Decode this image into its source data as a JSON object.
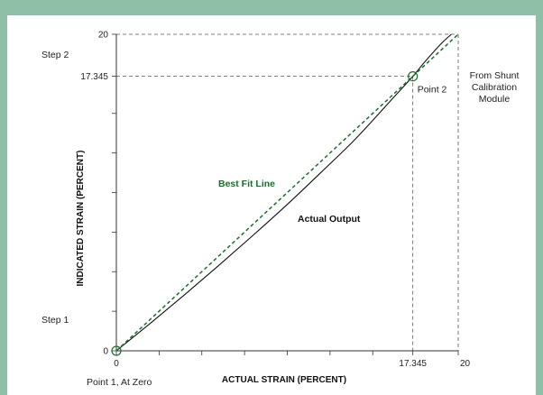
{
  "colors": {
    "background": "#8fbfa6",
    "panel": "#ffffff",
    "axis": "#333333",
    "actual": "#111111",
    "best_fit": "#1e6b2e",
    "guide": "#555555"
  },
  "chart_data": {
    "type": "line",
    "xlabel": "ACTUAL STRAIN (PERCENT)",
    "ylabel": "INDICATED STRAIN (PERCENT)",
    "xlim": [
      0,
      20
    ],
    "ylim": [
      0,
      20
    ],
    "x_ticks": [
      0,
      17.345,
      20
    ],
    "x_tick_labels": [
      "0",
      "17.345",
      "20"
    ],
    "y_ticks": [
      0,
      17.345,
      20
    ],
    "y_tick_labels": [
      "0",
      "17.345",
      "20"
    ],
    "minor_ticks": [
      2.5,
      5,
      7.5,
      10,
      12.5,
      15
    ],
    "series": [
      {
        "name": "Actual Output",
        "style": "solid",
        "x": [
          0,
          2,
          4,
          6,
          8,
          10,
          12,
          14,
          16,
          17.345,
          18,
          19,
          19.6
        ],
        "y": [
          0,
          1.75,
          3.55,
          5.4,
          7.3,
          9.25,
          11.3,
          13.4,
          15.75,
          17.345,
          18.2,
          19.4,
          20
        ]
      },
      {
        "name": "Best Fit Line",
        "style": "dashed",
        "x": [
          0,
          20
        ],
        "y": [
          0,
          20
        ]
      }
    ],
    "points": [
      {
        "label": "Point 1, At Zero",
        "x": 0,
        "y": 0
      },
      {
        "label": "Point 2",
        "x": 17.345,
        "y": 17.345
      }
    ],
    "annotations": {
      "step2": "Step 2",
      "step1": "Step 1",
      "shunt": [
        "From Shunt",
        "Calibration",
        "Module"
      ]
    }
  }
}
